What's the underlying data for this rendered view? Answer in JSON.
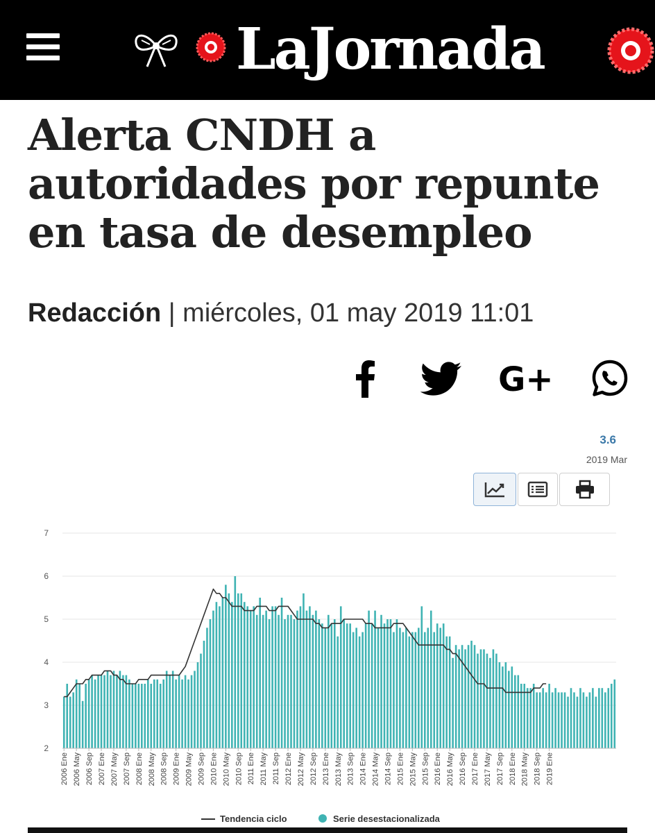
{
  "site": {
    "logo_text": "LaJornada",
    "colors": {
      "header_bg": "#000000",
      "logo_red": "#e5141b"
    }
  },
  "article": {
    "headline": "Alerta CNDH a autoridades por repunte en tasa de desempleo",
    "author": "Redacción",
    "separator": " | ",
    "date": "miércoles, 01 may 2019 11:01"
  },
  "share": {
    "icons": [
      "facebook-icon",
      "twitter-icon",
      "google-plus-icon",
      "whatsapp-icon"
    ],
    "google_plus_label": "G+"
  },
  "chart_header": {
    "latest_value": "3.6",
    "latest_period": "2019 Mar"
  },
  "toolbar": {
    "icons": [
      "line-chart-icon",
      "table-icon",
      "print-icon"
    ]
  },
  "chart_data": {
    "type": "bar",
    "x_tick_labels": [
      "2006 Ene",
      "2006 May",
      "2006 Sep",
      "2007 Ene",
      "2007 May",
      "2007 Sep",
      "2008 Ene",
      "2008 May",
      "2008 Sep",
      "2009 Ene",
      "2009 May",
      "2009 Sep",
      "2010 Ene",
      "2010 May",
      "2010 Sep",
      "2011 Ene",
      "2011 May",
      "2011 Sep",
      "2012 Ene",
      "2012 May",
      "2012 Sep",
      "2013 Ene",
      "2013 May",
      "2013 Sep",
      "2014 Ene",
      "2014 May",
      "2014 Sep",
      "2015 Ene",
      "2015 May",
      "2015 Sep",
      "2016 Ene",
      "2016 May",
      "2016 Sep",
      "2017 Ene",
      "2017 May",
      "2017 Sep",
      "2018 Ene",
      "2018 May",
      "2018 Sep",
      "2019 Ene"
    ],
    "y_ticks": [
      2,
      3,
      4,
      5,
      6,
      7
    ],
    "ylim": [
      2,
      7
    ],
    "grid": true,
    "legend_position": "bottom",
    "colors": {
      "bars": "#3fb3b3",
      "trend": "#333333"
    },
    "series": [
      {
        "name": "Serie desestacionalizada",
        "type": "bar",
        "values": [
          3.2,
          3.5,
          3.2,
          3.3,
          3.6,
          3.5,
          3.1,
          3.5,
          3.6,
          3.7,
          3.6,
          3.7,
          3.7,
          3.7,
          3.8,
          3.7,
          3.8,
          3.7,
          3.8,
          3.7,
          3.7,
          3.6,
          3.5,
          3.5,
          3.5,
          3.5,
          3.5,
          3.6,
          3.5,
          3.6,
          3.6,
          3.5,
          3.6,
          3.8,
          3.7,
          3.8,
          3.6,
          3.7,
          3.6,
          3.7,
          3.6,
          3.7,
          3.8,
          4.0,
          4.2,
          4.5,
          4.8,
          5.0,
          5.2,
          5.4,
          5.3,
          5.5,
          5.8,
          5.6,
          5.4,
          6.0,
          5.6,
          5.6,
          5.4,
          5.3,
          5.2,
          5.3,
          5.1,
          5.5,
          5.1,
          5.2,
          5.0,
          5.3,
          5.3,
          5.1,
          5.5,
          5.0,
          5.1,
          5.1,
          5.0,
          5.2,
          5.3,
          5.6,
          5.2,
          5.3,
          5.1,
          5.2,
          5.0,
          4.9,
          4.8,
          5.1,
          4.9,
          5.0,
          4.6,
          5.3,
          5.0,
          4.9,
          4.9,
          4.7,
          4.8,
          4.6,
          4.7,
          4.9,
          5.2,
          4.9,
          5.2,
          4.8,
          5.1,
          4.9,
          5.0,
          5.0,
          4.7,
          5.0,
          4.8,
          4.7,
          4.8,
          4.6,
          4.7,
          4.7,
          4.8,
          5.3,
          4.7,
          4.8,
          5.2,
          4.7,
          4.9,
          4.8,
          4.9,
          4.6,
          4.6,
          4.1,
          4.4,
          4.3,
          4.4,
          4.3,
          4.4,
          4.5,
          4.4,
          4.2,
          4.3,
          4.3,
          4.2,
          4.1,
          4.3,
          4.2,
          4.0,
          3.9,
          4.0,
          3.8,
          3.9,
          3.7,
          3.7,
          3.5,
          3.5,
          3.4,
          3.4,
          3.5,
          3.3,
          3.3,
          3.4,
          3.3,
          3.5,
          3.3,
          3.4,
          3.3,
          3.3,
          3.3,
          3.2,
          3.4,
          3.3,
          3.2,
          3.4,
          3.3,
          3.2,
          3.3,
          3.4,
          3.2,
          3.4,
          3.4,
          3.3,
          3.4,
          3.5,
          3.6
        ]
      },
      {
        "name": "Tendencia ciclo",
        "type": "line",
        "values": [
          3.2,
          3.2,
          3.3,
          3.4,
          3.5,
          3.5,
          3.5,
          3.6,
          3.6,
          3.7,
          3.7,
          3.7,
          3.7,
          3.8,
          3.8,
          3.8,
          3.7,
          3.7,
          3.6,
          3.6,
          3.5,
          3.5,
          3.5,
          3.5,
          3.6,
          3.6,
          3.6,
          3.6,
          3.7,
          3.7,
          3.7,
          3.7,
          3.7,
          3.7,
          3.7,
          3.7,
          3.7,
          3.7,
          3.8,
          3.9,
          4.1,
          4.3,
          4.5,
          4.7,
          4.9,
          5.1,
          5.3,
          5.5,
          5.7,
          5.6,
          5.6,
          5.5,
          5.5,
          5.4,
          5.3,
          5.3,
          5.3,
          5.3,
          5.2,
          5.2,
          5.2,
          5.2,
          5.3,
          5.3,
          5.3,
          5.3,
          5.2,
          5.2,
          5.2,
          5.3,
          5.3,
          5.3,
          5.3,
          5.2,
          5.1,
          5.0,
          5.0,
          5.0,
          5.0,
          5.0,
          5.0,
          4.9,
          4.9,
          4.8,
          4.8,
          4.8,
          4.9,
          4.9,
          4.9,
          4.9,
          5.0,
          5.0,
          5.0,
          5.0,
          5.0,
          5.0,
          5.0,
          4.9,
          4.9,
          4.9,
          4.8,
          4.8,
          4.8,
          4.8,
          4.8,
          4.8,
          4.9,
          4.9,
          4.9,
          4.9,
          4.8,
          4.7,
          4.6,
          4.5,
          4.4,
          4.4,
          4.4,
          4.4,
          4.4,
          4.4,
          4.4,
          4.4,
          4.4,
          4.3,
          4.3,
          4.2,
          4.2,
          4.1,
          4.0,
          3.9,
          3.8,
          3.7,
          3.6,
          3.5,
          3.5,
          3.5,
          3.4,
          3.4,
          3.4,
          3.4,
          3.4,
          3.4,
          3.3,
          3.3,
          3.3,
          3.3,
          3.3,
          3.3,
          3.3,
          3.3,
          3.3,
          3.4,
          3.4,
          3.4,
          3.5,
          3.5
        ]
      }
    ]
  }
}
